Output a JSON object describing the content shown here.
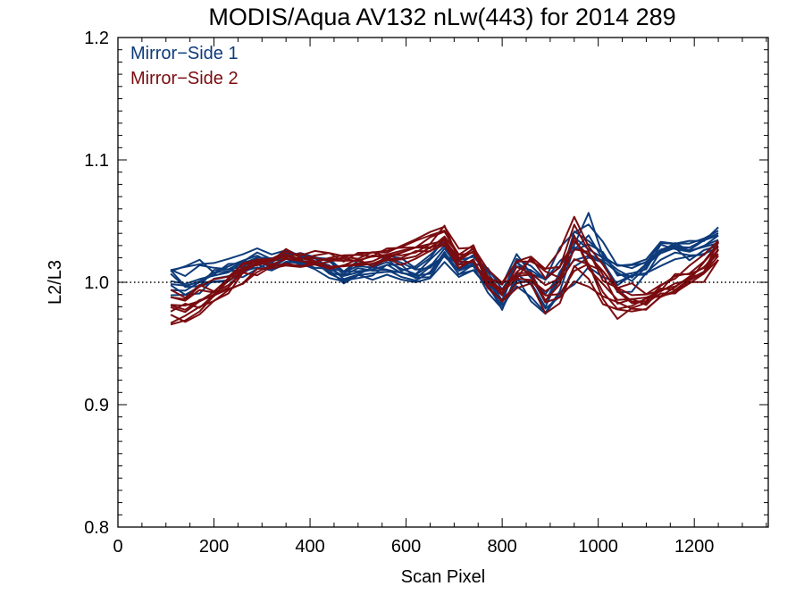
{
  "chart_data": {
    "type": "line",
    "title": "MODIS/Aqua AV132 nLw(443) for 2014 289",
    "xlabel": "Scan Pixel",
    "ylabel": "L2/L3",
    "xlim": [
      0,
      1354
    ],
    "ylim": [
      0.8,
      1.2
    ],
    "x_ticks": [
      0,
      200,
      400,
      600,
      800,
      1000,
      1200
    ],
    "y_ticks": [
      0.8,
      0.9,
      1.0,
      1.1,
      1.2
    ],
    "x_tick_labels": [
      "0",
      "200",
      "400",
      "600",
      "800",
      "1000",
      "1200"
    ],
    "y_tick_labels": [
      "0.8",
      "0.9",
      "1.0",
      "1.1",
      "1.2"
    ],
    "reference_line": {
      "y": 1.0,
      "style": "dotted"
    },
    "legend": {
      "position": "top-left"
    },
    "x": [
      110,
      140,
      170,
      200,
      230,
      260,
      290,
      320,
      350,
      380,
      410,
      440,
      470,
      500,
      530,
      560,
      590,
      620,
      650,
      680,
      710,
      740,
      770,
      800,
      830,
      860,
      890,
      920,
      950,
      980,
      1010,
      1040,
      1070,
      1100,
      1130,
      1160,
      1190,
      1220,
      1250
    ],
    "series": [
      {
        "name": "Mirror−Side 1",
        "color": "#0e3b7a",
        "values": [
          1.003,
          1.001,
          1.003,
          1.006,
          1.009,
          1.014,
          1.018,
          1.016,
          1.019,
          1.017,
          1.016,
          1.013,
          1.006,
          1.009,
          1.011,
          1.014,
          1.009,
          1.004,
          1.012,
          1.026,
          1.011,
          1.016,
          1.001,
          0.985,
          1.011,
          1.002,
          0.99,
          1.003,
          1.028,
          1.033,
          1.02,
          1.008,
          1.006,
          1.012,
          1.026,
          1.028,
          1.025,
          1.03,
          1.036
        ],
        "band": [
          0.022,
          0.022,
          0.018,
          0.015,
          0.014,
          0.013,
          0.012,
          0.012,
          0.011,
          0.011,
          0.011,
          0.012,
          0.012,
          0.012,
          0.012,
          0.012,
          0.012,
          0.012,
          0.013,
          0.014,
          0.013,
          0.013,
          0.014,
          0.016,
          0.022,
          0.028,
          0.032,
          0.032,
          0.035,
          0.035,
          0.026,
          0.018,
          0.015,
          0.014,
          0.013,
          0.012,
          0.012,
          0.012,
          0.014
        ]
      },
      {
        "name": "Mirror−Side 2",
        "color": "#7a0c10",
        "values": [
          0.982,
          0.979,
          0.985,
          0.991,
          0.998,
          1.008,
          1.013,
          1.016,
          1.019,
          1.019,
          1.018,
          1.018,
          1.017,
          1.018,
          1.02,
          1.022,
          1.024,
          1.029,
          1.032,
          1.039,
          1.02,
          1.026,
          1.001,
          0.99,
          1.005,
          1.009,
          0.995,
          1.001,
          1.023,
          1.012,
          0.995,
          0.985,
          0.983,
          0.985,
          0.993,
          0.997,
          1.004,
          1.011,
          1.025
        ],
        "band": [
          0.02,
          0.02,
          0.017,
          0.015,
          0.014,
          0.013,
          0.012,
          0.011,
          0.011,
          0.011,
          0.011,
          0.011,
          0.011,
          0.011,
          0.011,
          0.011,
          0.012,
          0.012,
          0.013,
          0.014,
          0.013,
          0.014,
          0.014,
          0.016,
          0.022,
          0.028,
          0.032,
          0.032,
          0.036,
          0.034,
          0.026,
          0.02,
          0.016,
          0.014,
          0.013,
          0.013,
          0.013,
          0.013,
          0.015
        ]
      }
    ]
  }
}
